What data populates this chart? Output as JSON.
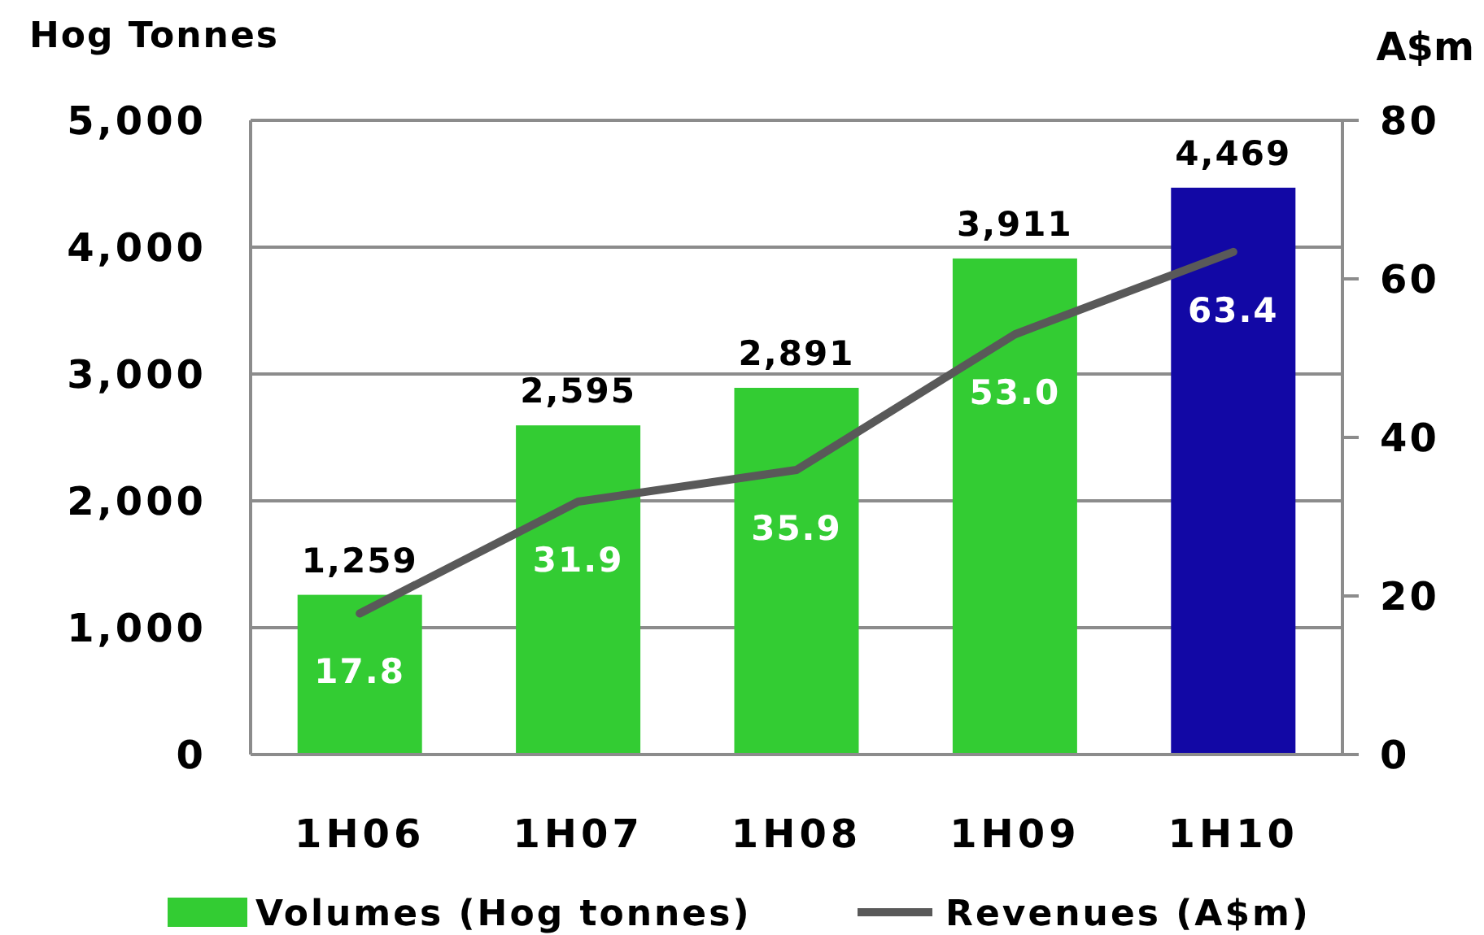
{
  "chart_data": {
    "type": "bar",
    "ylabel": "Hog Tonnes",
    "y2label": "A$m",
    "categories": [
      "1H06",
      "1H07",
      "1H08",
      "1H09",
      "1H10"
    ],
    "series": [
      {
        "name": "Volumes (Hog tonnes)",
        "color": "#33cc33",
        "colors": [
          "#33cc33",
          "#33cc33",
          "#33cc33",
          "#33cc33",
          "#1208a5"
        ],
        "values": [
          1259,
          2595,
          2891,
          3911,
          4469
        ],
        "value_labels": [
          "1,259",
          "2,595",
          "2,891",
          "3,911",
          "4,469"
        ]
      },
      {
        "name": "Revenues (A$m)",
        "type": "line",
        "axis": "y2",
        "color": "#595959",
        "values": [
          17.8,
          31.9,
          35.9,
          53.0,
          63.4
        ],
        "value_labels": [
          "17.8",
          "31.9",
          "35.9",
          "53.0",
          "63.4"
        ]
      }
    ],
    "ylim": [
      0,
      5000
    ],
    "yticks": [
      0,
      {
        "value": 1000,
        "label": "1,000"
      },
      {
        "value": 2000,
        "label": "2,000"
      },
      {
        "value": 3000,
        "label": "3,000"
      },
      {
        "value": 4000,
        "label": "4,000"
      },
      {
        "value": 5000,
        "label": "5,000"
      }
    ],
    "y2lim": [
      0,
      80
    ],
    "y2ticks": [
      0,
      20,
      40,
      60,
      80
    ],
    "grid": "y",
    "legend": "bottom"
  }
}
